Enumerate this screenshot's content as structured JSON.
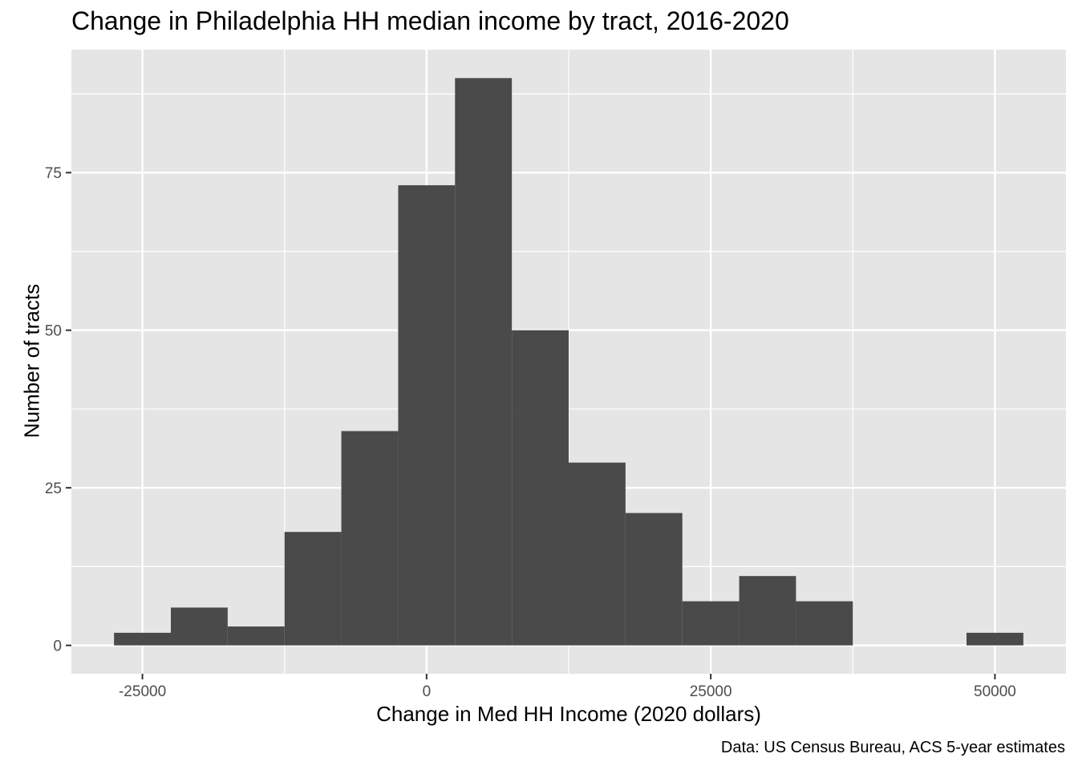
{
  "chart_data": {
    "type": "bar",
    "title": "Change in Philadelphia HH median income by tract, 2016-2020",
    "xlabel": "Change in Med HH Income (2020 dollars)",
    "ylabel": "Number of tracts",
    "caption": "Data: US Census Bureau, ACS 5-year estimates",
    "xlim": [
      -31250,
      56250
    ],
    "ylim": [
      -4.5,
      94.5
    ],
    "x_ticks": [
      -25000,
      0,
      25000,
      50000
    ],
    "x_tick_labels": [
      "-25000",
      "0",
      "25000",
      "50000"
    ],
    "y_ticks": [
      0,
      25,
      50,
      75
    ],
    "y_tick_labels": [
      "0",
      "25",
      "50",
      "75"
    ],
    "grid": true,
    "bin_width": 5000,
    "bins": [
      {
        "x0": -27500,
        "x1": -22500,
        "count": 2
      },
      {
        "x0": -22500,
        "x1": -17500,
        "count": 6
      },
      {
        "x0": -17500,
        "x1": -12500,
        "count": 3
      },
      {
        "x0": -12500,
        "x1": -7500,
        "count": 18
      },
      {
        "x0": -7500,
        "x1": -2500,
        "count": 34
      },
      {
        "x0": -2500,
        "x1": 2500,
        "count": 73
      },
      {
        "x0": 2500,
        "x1": 7500,
        "count": 90
      },
      {
        "x0": 7500,
        "x1": 12500,
        "count": 50
      },
      {
        "x0": 12500,
        "x1": 17500,
        "count": 29
      },
      {
        "x0": 17500,
        "x1": 22500,
        "count": 21
      },
      {
        "x0": 22500,
        "x1": 27500,
        "count": 7
      },
      {
        "x0": 27500,
        "x1": 32500,
        "count": 11
      },
      {
        "x0": 32500,
        "x1": 37500,
        "count": 7
      },
      {
        "x0": 37500,
        "x1": 42500,
        "count": 0
      },
      {
        "x0": 42500,
        "x1": 47500,
        "count": 0
      },
      {
        "x0": 47500,
        "x1": 52500,
        "count": 2
      }
    ],
    "colors": {
      "panel": "#e5e5e5",
      "grid": "#ffffff",
      "bar": "#4a4a4a",
      "tick": "#333333"
    }
  }
}
